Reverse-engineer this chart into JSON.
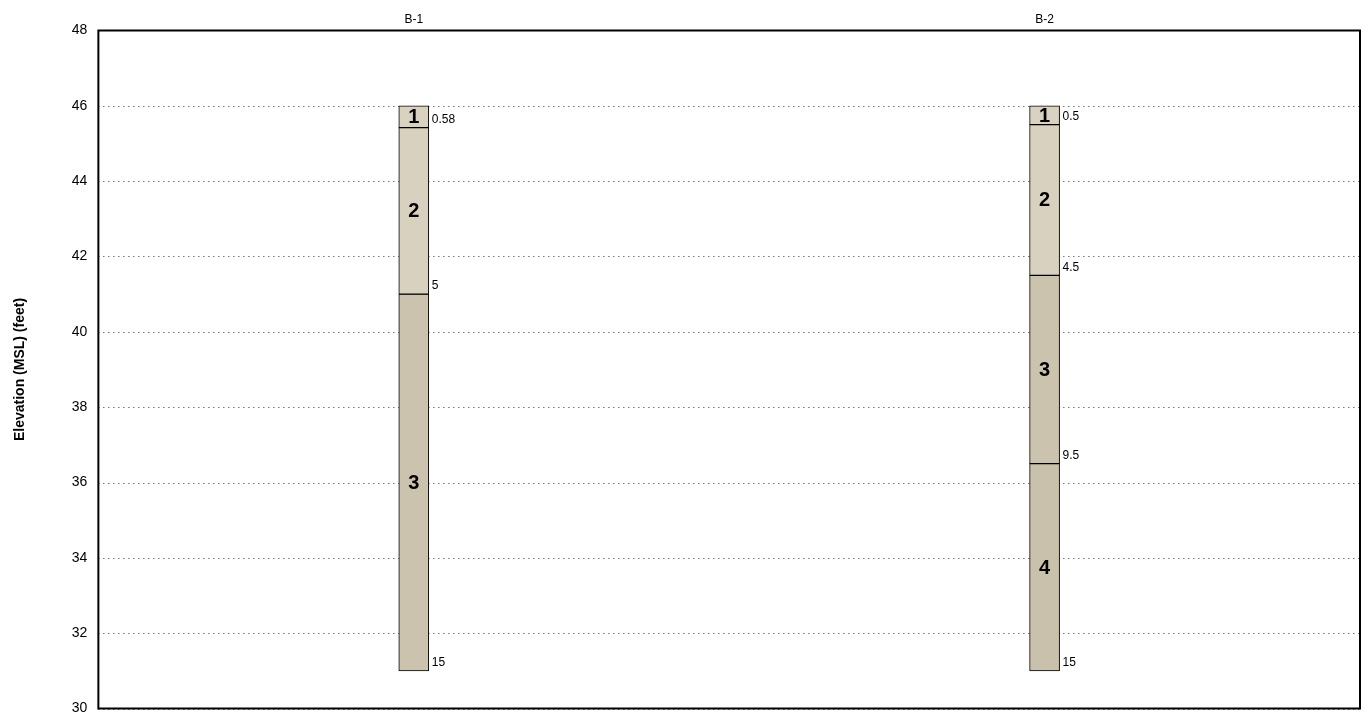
{
  "chart_data": {
    "type": "bar",
    "ylabel": "Elevation (MSL) (feet)",
    "categories": [
      "B-1",
      "B-2"
    ],
    "series": [
      {
        "name": "1",
        "color": "#dad2c1",
        "base": [
          46,
          46
        ],
        "values": [
          -0.58,
          -0.5
        ]
      },
      {
        "name": "2",
        "color": "#d9d1bf",
        "base": [
          45.42,
          45.5
        ],
        "values": [
          -4.42,
          -4
        ]
      },
      {
        "name": "3",
        "color": "#cbc3ae",
        "base": [
          41,
          41.5
        ],
        "values": [
          -10,
          -5
        ]
      },
      {
        "name": "4",
        "color": "#c9c1ab",
        "base": [
          null,
          36.5
        ],
        "values": [
          null,
          -5.5
        ]
      }
    ],
    "ylim": [
      30,
      48
    ],
    "yticks": [
      30,
      32,
      34,
      36,
      38,
      40,
      42,
      44,
      46,
      48
    ],
    "grid": "y",
    "legend": false,
    "annotations": [
      {
        "text": "0.58",
        "x": "B-1",
        "y": 45.42
      },
      {
        "text": "5",
        "x": "B-1",
        "y": 41
      },
      {
        "text": "15",
        "x": "B-1",
        "y": 31
      },
      {
        "text": "0.5",
        "x": "B-2",
        "y": 45.5
      },
      {
        "text": "4.5",
        "x": "B-2",
        "y": 41.5
      },
      {
        "text": "9.5",
        "x": "B-2",
        "y": 36.5
      },
      {
        "text": "15",
        "x": "B-2",
        "y": 31
      }
    ]
  }
}
